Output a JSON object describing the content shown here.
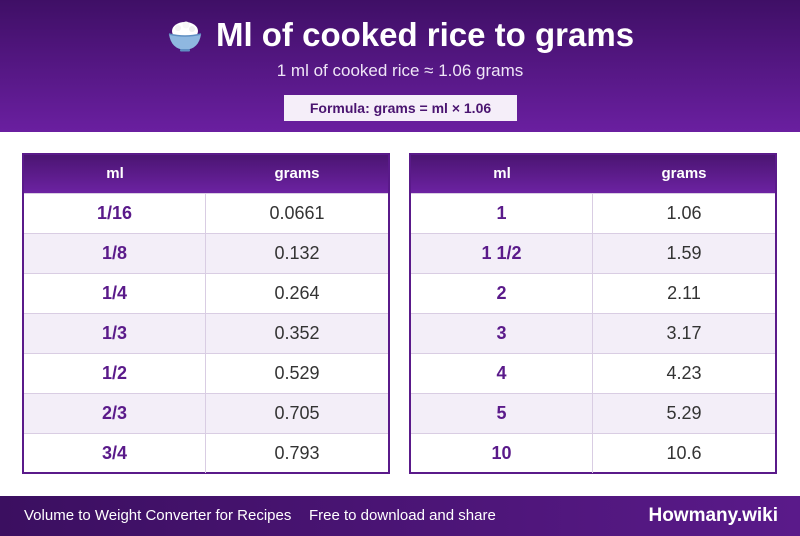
{
  "header": {
    "icon": "rice-bowl-icon",
    "title": "Ml of cooked rice to grams",
    "subtitle": "1 ml of cooked rice ≈ 1.06 grams",
    "formula": "Formula: grams = ml × 1.06"
  },
  "tables": [
    {
      "columns": [
        "ml",
        "grams"
      ],
      "rows": [
        {
          "ml": "1/16",
          "grams": "0.0661"
        },
        {
          "ml": "1/8",
          "grams": "0.132"
        },
        {
          "ml": "1/4",
          "grams": "0.264"
        },
        {
          "ml": "1/3",
          "grams": "0.352"
        },
        {
          "ml": "1/2",
          "grams": "0.529"
        },
        {
          "ml": "2/3",
          "grams": "0.705"
        },
        {
          "ml": "3/4",
          "grams": "0.793"
        }
      ]
    },
    {
      "columns": [
        "ml",
        "grams"
      ],
      "rows": [
        {
          "ml": "1",
          "grams": "1.06"
        },
        {
          "ml": "1 1/2",
          "grams": "1.59"
        },
        {
          "ml": "2",
          "grams": "2.11"
        },
        {
          "ml": "3",
          "grams": "3.17"
        },
        {
          "ml": "4",
          "grams": "4.23"
        },
        {
          "ml": "5",
          "grams": "5.29"
        },
        {
          "ml": "10",
          "grams": "10.6"
        }
      ]
    }
  ],
  "footer": {
    "left": "Volume to Weight Converter for Recipes",
    "middle": "Free to download and share",
    "brand": "Howmany.wiki"
  },
  "colors": {
    "header_dark": "#3f0f66",
    "header_light": "#6a1fa0",
    "accent": "#5a1a8a",
    "row_alt": "#f3eef8"
  }
}
